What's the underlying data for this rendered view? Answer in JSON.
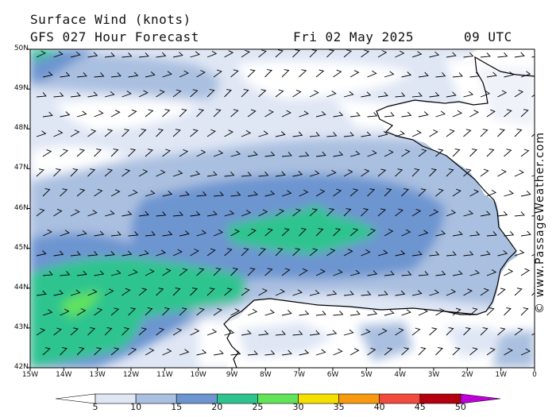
{
  "header": {
    "title": "Surface Wind (knots)",
    "subtitle": "GFS 027 Hour Forecast",
    "date": "Fri 02 May 2025",
    "time": "09 UTC"
  },
  "credit": "© www.PassageWeather.com",
  "axes": {
    "lat_labels": [
      "50N",
      "49N",
      "48N",
      "47N",
      "46N",
      "45N",
      "44N",
      "43N",
      "42N"
    ],
    "lon_labels": [
      "15W",
      "14W",
      "13W",
      "12W",
      "11W",
      "10W",
      "9W",
      "8W",
      "7W",
      "6W",
      "5W",
      "4W",
      "3W",
      "2W",
      "1W",
      "0"
    ]
  },
  "colorbar": {
    "labels": [
      "5",
      "10",
      "15",
      "20",
      "25",
      "30",
      "35",
      "40",
      "45",
      "50"
    ],
    "colors": [
      "#dfe6f4",
      "#aac0e0",
      "#6d95d0",
      "#2fc48f",
      "#62e35a",
      "#f4e000",
      "#f79a10",
      "#f24a3d",
      "#b5000f",
      "#c000d8"
    ],
    "low_color": "#ffffff"
  },
  "map": {
    "ocean_color": "#ffffff",
    "coast_color": "#000000"
  }
}
